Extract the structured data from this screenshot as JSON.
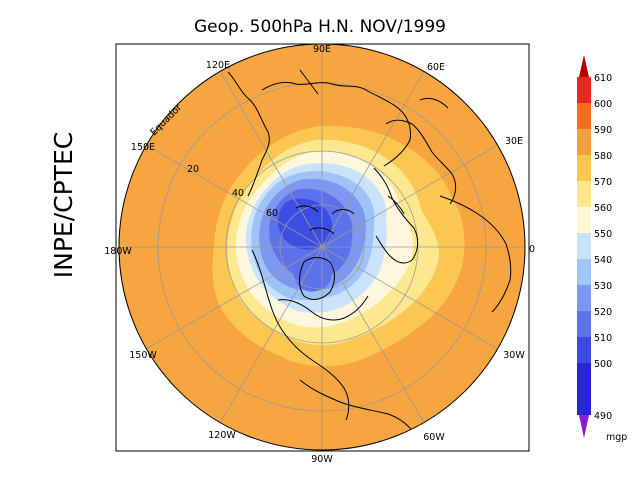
{
  "title": "Geop. 500hPa H.N. NOV/1999",
  "side_label": "INPE/CPTEC",
  "equator_label": "Equador",
  "longitude_labels": {
    "lon_90E": "90E",
    "lon_60E": "60E",
    "lon_30E": "30E",
    "lon_0": "0",
    "lon_30W": "30W",
    "lon_60W": "60W",
    "lon_90W": "90W",
    "lon_120W": "120W",
    "lon_150W": "150W",
    "lon_180W": "180W",
    "lon_150E": "150E",
    "lon_120E": "120E"
  },
  "latitude_labels": {
    "lat_20": "20",
    "lat_40": "40",
    "lat_60": "60"
  },
  "colorbar": {
    "unit": "mgp",
    "levels": [
      "610",
      "600",
      "590",
      "580",
      "570",
      "560",
      "550",
      "540",
      "530",
      "520",
      "510",
      "500",
      "490"
    ],
    "colors": {
      "above_610": "#b30000",
      "600_610": "#e8281e",
      "590_600": "#f76b1c",
      "580_590": "#f2a23c",
      "570_580": "#fac74d",
      "560_570": "#fde88b",
      "550_560": "#fff8d6",
      "540_550": "#c8e4fb",
      "530_540": "#9bc6f6",
      "520_530": "#7d96f2",
      "510_520": "#5d73ec",
      "500_510": "#3f48e0",
      "490_500": "#2a26d4",
      "below_490": "#8c1ad6"
    }
  },
  "map_colors": {
    "outer": "#f7a540",
    "ring_580": "#fcc652",
    "ring_560": "#fde88f",
    "ring_550": "#fff7dd",
    "ring_540": "#c9e3fb",
    "ring_530": "#9ec3f5",
    "ring_520": "#7e97f1",
    "ring_510": "#5c72eb",
    "ring_500": "#3b4de2",
    "coast": "#000000",
    "grid": "#9a9a9a",
    "frame": "#000000"
  }
}
